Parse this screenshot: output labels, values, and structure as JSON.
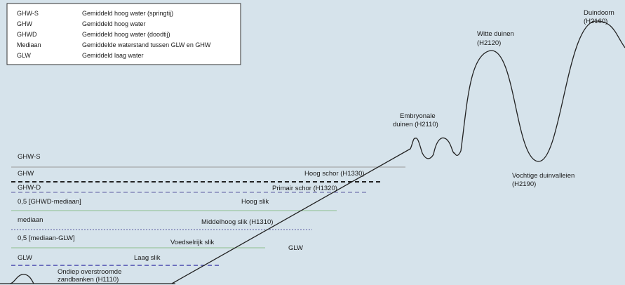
{
  "legend": {
    "rows": [
      {
        "abbr": "GHW-S",
        "desc": "Gemiddeld hoog water (springtij)"
      },
      {
        "abbr": "GHW",
        "desc": "Gemiddeld hoog water"
      },
      {
        "abbr": "GHWD",
        "desc": "Gemiddeld hoog water (doodtij)"
      },
      {
        "abbr": "Mediaan",
        "desc": "Gemiddelde waterstand tussen GLW en GHW"
      },
      {
        "abbr": "GLW",
        "desc": "Gemiddeld laag water"
      }
    ]
  },
  "water_levels": [
    {
      "label": "GHW-S",
      "style": "none",
      "color": ""
    },
    {
      "label": "GHW",
      "style": "solid",
      "color": "#9a9a9a"
    },
    {
      "label": "GHW-D",
      "style": "thick-dashed",
      "color": "#222222"
    },
    {
      "label": "0,5 [GHWD-mediaan]",
      "style": "dashed",
      "color": "#5a5aa0"
    },
    {
      "label": "mediaan",
      "style": "solid",
      "color": "#8cbf8c"
    },
    {
      "label": "0,5 [mediaan-GLW]",
      "style": "dotted",
      "color": "#5a5aa0"
    },
    {
      "label": "GLW",
      "style": "solid",
      "color": "#8cbf8c"
    },
    {
      "label": "",
      "style": "dashed",
      "color": "#4a4ab0"
    }
  ],
  "habitats": {
    "hoog_schor": "Hoog schor (H1330)",
    "primair_schor": "Primair schor (H1320)",
    "hoog_slik": "Hoog slik",
    "middelhoog_slik": "Middelhoog slik (H1310)",
    "voedselrijk_slik": "Voedselrijk slik",
    "laag_slik": "Laag slik",
    "zandbanken_1": "Ondiep overstroomde",
    "zandbanken_2": "zandbanken (H1110)",
    "glw_label": "GLW",
    "embryonale_1": "Embryonale",
    "embryonale_2": "duinen (H2110)",
    "witte_1": "Witte duinen",
    "witte_2": "(H2120)",
    "duindoorn_1": "Duindoorn",
    "duindoorn_2": "(H2160)",
    "vochtige_1": "Vochtige duinvalleien",
    "vochtige_2": "(H2190)"
  },
  "colors": {
    "background": "#d6e3eb",
    "legend_background": "#ffffff",
    "profile_line": "#222222"
  }
}
